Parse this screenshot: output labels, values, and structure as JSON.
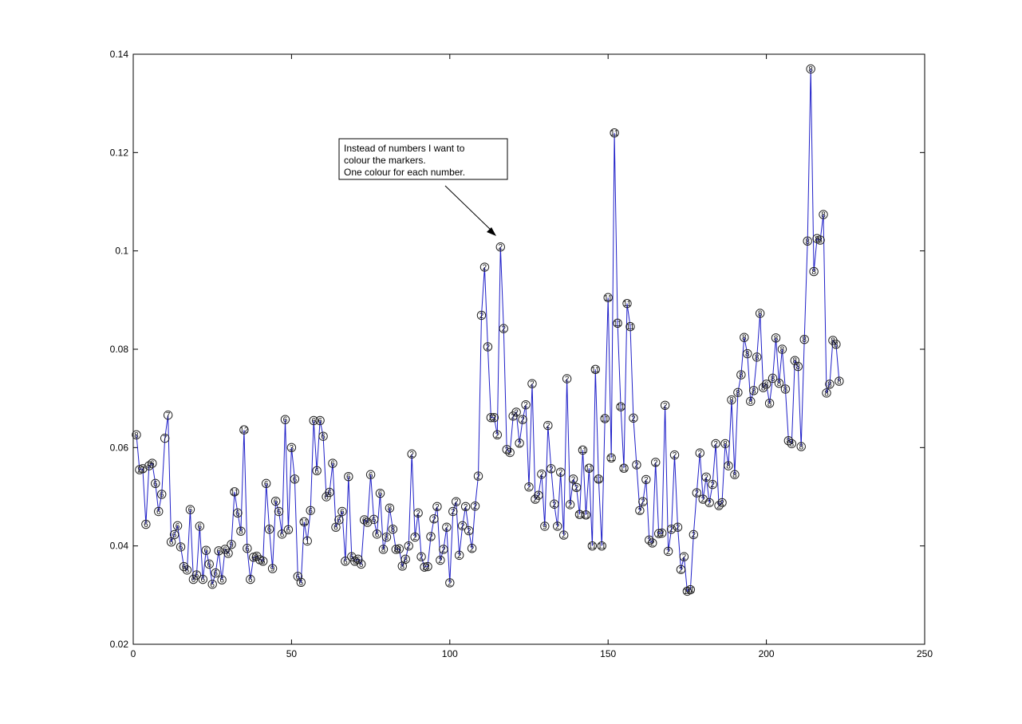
{
  "chart_data": {
    "type": "line",
    "title": "",
    "xlabel": "",
    "ylabel": "",
    "xlim": [
      0,
      250
    ],
    "ylim": [
      0.02,
      0.14
    ],
    "xticks": [
      0,
      50,
      100,
      150,
      200,
      250
    ],
    "yticks": [
      0.02,
      0.04,
      0.06,
      0.08,
      0.1,
      0.12,
      0.14
    ],
    "xtick_labels": [
      "0",
      "50",
      "100",
      "150",
      "200",
      "250"
    ],
    "ytick_labels": [
      "0.02",
      "0.04",
      "0.06",
      "0.08",
      "0.1",
      "0.12",
      "0.14"
    ],
    "grid": false,
    "line_color": "#1f1fc8",
    "marker": "circle",
    "series": [
      {
        "x": [
          1,
          2,
          3,
          4,
          5,
          6,
          7,
          8,
          9,
          10,
          11,
          12,
          13,
          14,
          15,
          16,
          17,
          18,
          19,
          20,
          21,
          22,
          23,
          24,
          25,
          26,
          27,
          28,
          29,
          30,
          31,
          32,
          33,
          34,
          35,
          36,
          37,
          38,
          39,
          40,
          41,
          42,
          43,
          44,
          45,
          46,
          47,
          48,
          49,
          50,
          51,
          52,
          53,
          54,
          55,
          56,
          57,
          58,
          59,
          60,
          61,
          62,
          63,
          64,
          65,
          66,
          67,
          68,
          69,
          70,
          71,
          72,
          73,
          74,
          75,
          76,
          77,
          78,
          79,
          80,
          81,
          82,
          83,
          84,
          85,
          86,
          87,
          88,
          89,
          90,
          91,
          92,
          93,
          94,
          95,
          96,
          97,
          98,
          99,
          100,
          101,
          102,
          103,
          104,
          105,
          106,
          107,
          108,
          109,
          110,
          111,
          112,
          113,
          114,
          115,
          116,
          117,
          118,
          119,
          120,
          121,
          122,
          123,
          124,
          125,
          126,
          127,
          128,
          129,
          130,
          131,
          132,
          133,
          134,
          135,
          136,
          137,
          138,
          139,
          140,
          141,
          142,
          143,
          144,
          145,
          146,
          147,
          148,
          149,
          150,
          151,
          152,
          153,
          154,
          155,
          156,
          157,
          158,
          159,
          160,
          161,
          162,
          163,
          164,
          165,
          166,
          167,
          168,
          169,
          170,
          171,
          172,
          173,
          174,
          175,
          176,
          177,
          178,
          179,
          180,
          181,
          182,
          183,
          184,
          185,
          186,
          187,
          188,
          189,
          190,
          191,
          192,
          193,
          194,
          195,
          196,
          197,
          198,
          199,
          200,
          201,
          202,
          203,
          204,
          205,
          206,
          207,
          208,
          209,
          210,
          211,
          212,
          213,
          214,
          215,
          216,
          217,
          218,
          219,
          220,
          221,
          222,
          223
        ],
        "y": [
          0.0626,
          0.0555,
          0.0557,
          0.0444,
          0.0563,
          0.0568,
          0.0527,
          0.047,
          0.0505,
          0.0619,
          0.0666,
          0.0408,
          0.0423,
          0.0441,
          0.0398,
          0.0358,
          0.0351,
          0.0474,
          0.0332,
          0.0341,
          0.044,
          0.0332,
          0.0391,
          0.0363,
          0.0322,
          0.0345,
          0.039,
          0.0331,
          0.0393,
          0.0385,
          0.0403,
          0.051,
          0.0467,
          0.043,
          0.0636,
          0.0395,
          0.0332,
          0.0377,
          0.0379,
          0.0372,
          0.0369,
          0.0527,
          0.0434,
          0.0354,
          0.0491,
          0.047,
          0.0424,
          0.0657,
          0.0433,
          0.06,
          0.0536,
          0.0338,
          0.0326,
          0.0449,
          0.041,
          0.0472,
          0.0655,
          0.0553,
          0.0655,
          0.0623,
          0.05,
          0.0509,
          0.0568,
          0.0438,
          0.0453,
          0.047,
          0.0369,
          0.0541,
          0.0378,
          0.0369,
          0.0373,
          0.0363,
          0.0453,
          0.0448,
          0.0545,
          0.0454,
          0.0424,
          0.0507,
          0.0393,
          0.0418,
          0.0477,
          0.0434,
          0.0393,
          0.0394,
          0.0359,
          0.0373,
          0.04,
          0.0587,
          0.0418,
          0.0467,
          0.0378,
          0.0357,
          0.0358,
          0.0419,
          0.0455,
          0.048,
          0.0371,
          0.0393,
          0.0438,
          0.0325,
          0.047,
          0.049,
          0.0381,
          0.0441,
          0.048,
          0.0431,
          0.0395,
          0.0481,
          0.0542,
          0.0869,
          0.0967,
          0.0805,
          0.0661,
          0.0661,
          0.0626,
          0.1008,
          0.0842,
          0.0596,
          0.059,
          0.0664,
          0.0672,
          0.0609,
          0.0657,
          0.0687,
          0.052,
          0.073,
          0.0495,
          0.0503,
          0.0546,
          0.044,
          0.0645,
          0.0557,
          0.0485,
          0.044,
          0.055,
          0.0422,
          0.074,
          0.0484,
          0.0536,
          0.0519,
          0.0464,
          0.0595,
          0.0463,
          0.0558,
          0.04,
          0.0759,
          0.0536,
          0.04,
          0.0659,
          0.0905,
          0.0579,
          0.124,
          0.0853,
          0.0683,
          0.0558,
          0.0893,
          0.0846,
          0.066,
          0.0565,
          0.0472,
          0.049,
          0.0535,
          0.0412,
          0.0406,
          0.057,
          0.0425,
          0.0426,
          0.0686,
          0.0389,
          0.0434,
          0.0585,
          0.0438,
          0.0352,
          0.0378,
          0.0308,
          0.0311,
          0.0423,
          0.0508,
          0.0589,
          0.0495,
          0.054,
          0.0488,
          0.0525,
          0.0608,
          0.0482,
          0.0488,
          0.0608,
          0.0563,
          0.0697,
          0.0545,
          0.0712,
          0.0748,
          0.0824,
          0.0791,
          0.0694,
          0.0716,
          0.0784,
          0.0873,
          0.0722,
          0.0729,
          0.069,
          0.0741,
          0.0823,
          0.0731,
          0.08,
          0.0719,
          0.0614,
          0.0608,
          0.0777,
          0.0765,
          0.0602,
          0.082,
          0.102,
          0.137,
          0.0958,
          0.1025,
          0.1022,
          0.1074,
          0.0711,
          0.0729,
          0.0818,
          0.081,
          0.0735
        ],
        "marker_labels": [
          "8",
          "2",
          "2",
          "6",
          "6",
          "6",
          "6",
          "6",
          "6",
          "7",
          "7",
          "6",
          "6",
          "6",
          "6",
          "6",
          "6",
          "6",
          "6",
          "6",
          "6",
          "6",
          "6",
          "6",
          "6",
          "6",
          "6",
          "6",
          "6",
          "6",
          "9",
          "11",
          "6",
          "8",
          "12",
          "6",
          "6",
          "6",
          "6",
          "6",
          "6",
          "6",
          "6",
          "9",
          "6",
          "6",
          "6",
          "6",
          "6",
          "3",
          "6",
          "6",
          "6",
          "11",
          "1",
          "6",
          "6",
          "6",
          "6",
          "6",
          "6",
          "6",
          "6",
          "6",
          "6",
          "6",
          "6",
          "6",
          "6",
          "6",
          "6",
          "6",
          "6",
          "6",
          "6",
          "6",
          "6",
          "6",
          "8",
          "8",
          "8",
          "8",
          "8",
          "8",
          "8",
          "8",
          "2",
          "2",
          "2",
          "2",
          "2",
          "2",
          "2",
          "2",
          "2",
          "2",
          "2",
          "2",
          "2",
          "2",
          "2",
          "2",
          "2",
          "2",
          "2",
          "2",
          "2",
          "2",
          "2",
          "2",
          "2",
          "2",
          "2",
          "2",
          "2",
          "2",
          "2",
          "2",
          "2",
          "2",
          "2",
          "2",
          "2",
          "2",
          "2",
          "2",
          "2",
          "2",
          "2",
          "9",
          "2",
          "2",
          "2",
          "2",
          "2",
          "2",
          "2",
          "2",
          "2",
          "2",
          "11",
          "11",
          "11",
          "11",
          "11",
          "11",
          "11",
          "11",
          "11",
          "11",
          "11",
          "11",
          "11",
          "11",
          "11",
          "11",
          "11",
          "2",
          "2",
          "2",
          "2",
          "2",
          "2",
          "2",
          "2",
          "2",
          "2",
          "2",
          "2",
          "2",
          "2",
          "2",
          "2",
          "2",
          "11",
          "11",
          "2",
          "2",
          "2",
          "2",
          "2",
          "2",
          "2",
          "2",
          "2",
          "2",
          "8",
          "8",
          "8",
          "8",
          "8",
          "8",
          "8",
          "8",
          "8",
          "8",
          "8",
          "8",
          "8",
          "8",
          "8",
          "8",
          "8",
          "8",
          "8",
          "8",
          "8",
          "8",
          "8",
          "8",
          "8",
          "8",
          "8",
          "8",
          "8",
          "8",
          "8",
          "8",
          "8",
          "8",
          "8",
          "8",
          "8",
          "8",
          "8"
        ]
      }
    ],
    "annotations": [
      {
        "lines": [
          "Instead of numbers I want to",
          "colour the markers.",
          "One colour for each number."
        ],
        "arrow_to": [
          116,
          0.1012
        ]
      }
    ]
  }
}
